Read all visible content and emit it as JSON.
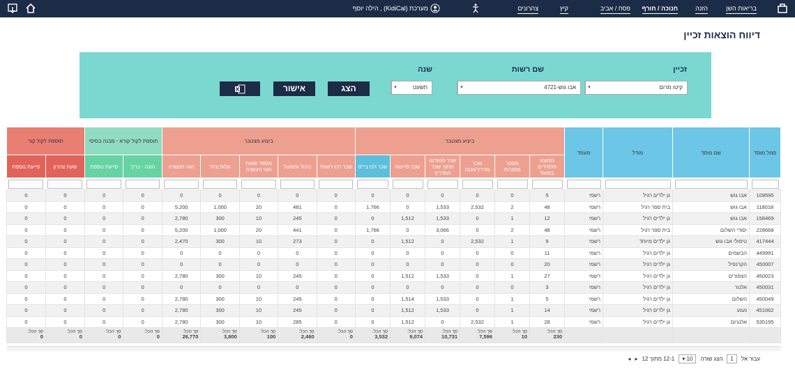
{
  "nav": {
    "tabs": [
      "בריאות השן",
      "הזנה",
      "חנוכה / חורף",
      "פסח / אביב",
      "קיץ",
      "צהרונים"
    ],
    "user": "מערכת (KidiCal) , הילה יוסף"
  },
  "title": "דיווח הוצאות זכיין",
  "filters": {
    "labels": [
      "זכיין",
      "שם רשות",
      "שנה"
    ],
    "values": [
      "קיטו מרום",
      "אבו גוש-4721",
      "תשעט"
    ]
  },
  "buttons": [
    "הצג",
    "אישור"
  ],
  "table": {
    "fixed_columns": [
      "סמל מוסד",
      "שם מוסד",
      "מודל",
      "מעמד"
    ],
    "groups": [
      {
        "label": "ביצוע מצטבר",
        "columns": [
          "ממוצע תלמידים בפועל",
          "מספר מסגרות",
          "שכר מדריך/גננת",
          "שכר סטודנט מתוך שכר המדריך",
          "שכר סייעות",
          "שכר רכז בי\"ס"
        ]
      },
      {
        "label": "ביצוע מצטבר",
        "columns": [
          "שכר רכז רשותי",
          "ניהול ותפעול",
          "מספר שעות חוגי העשרה",
          "עלות ציוד",
          "חוגי העשרה"
        ]
      },
      {
        "label": "תוספת לקול קורא - מבנה בסיסי",
        "columns": [
          "הזנה - כריך",
          "סייעת נוספת"
        ]
      },
      {
        "label": "תוספת לקול קור",
        "columns": [
          "שעת צהרון",
          "סייעת נוספת"
        ]
      }
    ],
    "rows": [
      [
        "109595",
        "אבו גוש",
        "גן ילדים רגיל",
        "רשמי",
        "5",
        "0",
        "0",
        "0",
        "0",
        "0",
        "0",
        "0",
        "0",
        "0",
        "0",
        "0",
        "0",
        "0",
        "0"
      ],
      [
        "118018",
        "אבו גוש",
        "בית ספר רגיל",
        "רשמי",
        "48",
        "2",
        "2,532",
        "1,533",
        "0",
        "1,766",
        "0",
        "481",
        "20",
        "1,000",
        "5,200",
        "0",
        "0",
        "0",
        "0"
      ],
      [
        "158469",
        "אבו גוש",
        "גן ילדים רגיל",
        "רשמי",
        "12",
        "1",
        "0",
        "1,533",
        "1,512",
        "0",
        "0",
        "245",
        "10",
        "300",
        "2,780",
        "0",
        "0",
        "0",
        "0"
      ],
      [
        "228668",
        "יסודי השלום",
        "בית ספר רגיל",
        "רשמי",
        "48",
        "2",
        "0",
        "3,066",
        "0",
        "1,766",
        "0",
        "441",
        "20",
        "1,000",
        "5,200",
        "0",
        "0",
        "0",
        "0"
      ],
      [
        "417444",
        "טיפולי אבו גוש",
        "גן ילדים מיוחד",
        "רשמי",
        "9",
        "1",
        "2,532",
        "0",
        "1,512",
        "0",
        "0",
        "273",
        "10",
        "300",
        "2,470",
        "0",
        "0",
        "0",
        "0"
      ],
      [
        "449991",
        "הבשמים",
        "גן ילדים רגיל",
        "רשמי",
        "11",
        "0",
        "0",
        "0",
        "0",
        "0",
        "0",
        "0",
        "0",
        "0",
        "0",
        "0",
        "0",
        "0",
        "0"
      ],
      [
        "450007",
        "הקרנפיל",
        "גן ילדים רגיל",
        "רשמי",
        "20",
        "0",
        "0",
        "0",
        "0",
        "0",
        "0",
        "0",
        "0",
        "0",
        "0",
        "0",
        "0",
        "0",
        "0"
      ],
      [
        "450023",
        "הצפורים",
        "גן ילדים רגיל",
        "רשמי",
        "27",
        "1",
        "0",
        "1,533",
        "1,512",
        "0",
        "0",
        "245",
        "10",
        "300",
        "2,780",
        "0",
        "0",
        "0",
        "0"
      ],
      [
        "450031",
        "אלנור",
        "גן ילדים רגיל",
        "רשמי",
        "3",
        "0",
        "0",
        "0",
        "0",
        "0",
        "0",
        "0",
        "0",
        "0",
        "0",
        "0",
        "0",
        "0",
        "0"
      ],
      [
        "450049",
        "השלום",
        "גן ילדים רגיל",
        "רשמי",
        "5",
        "1",
        "0",
        "1,533",
        "1,514",
        "0",
        "0",
        "245",
        "10",
        "300",
        "2,780",
        "0",
        "0",
        "0",
        "0"
      ],
      [
        "451062",
        "נענע",
        "גן ילדים רגיל",
        "רשמי",
        "14",
        "1",
        "0",
        "1,533",
        "1,512",
        "0",
        "0",
        "245",
        "10",
        "300",
        "2,780",
        "0",
        "0",
        "0",
        "0"
      ],
      [
        "535195",
        "אלנג'ום",
        "גן ילדים רגיל",
        "רשמי",
        "28",
        "1",
        "2,532",
        "0",
        "1,512",
        "0",
        "0",
        "285",
        "10",
        "300",
        "2,780",
        "0",
        "0",
        "0",
        "0"
      ]
    ],
    "totals_label": "סך הכל:",
    "totals": [
      "230",
      "10",
      "7,596",
      "10,731",
      "9,074",
      "3,532",
      "0",
      "2,460",
      "100",
      "3,800",
      "26,770",
      "0",
      "0",
      "0",
      "0"
    ]
  },
  "pagination": {
    "goto": "עבור אל",
    "page": "1",
    "rows_label": "הצג שורה",
    "rows_per_page": "10",
    "range": "12-1 מתוך 12"
  }
}
